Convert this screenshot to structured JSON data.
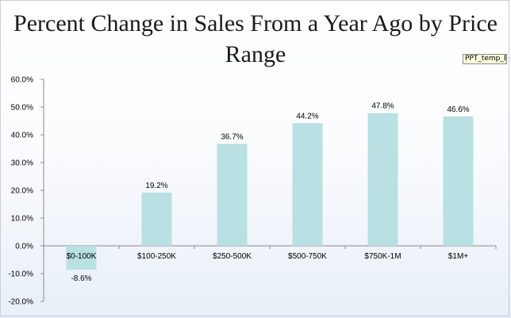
{
  "title": "Percent Change in Sales From a Year Ago by Price Range",
  "file_tag": "PPT_temp_B.jpg",
  "colors": {
    "bar": "#b9e0e2",
    "axis": "#8a8a8a"
  },
  "chart_data": {
    "type": "bar",
    "title": "Percent Change in Sales From a Year Ago by Price Range",
    "xlabel": "",
    "ylabel": "",
    "categories": [
      "$0-100K",
      "$100-250K",
      "$250-500K",
      "$500-750K",
      "$750K-1M",
      "$1M+"
    ],
    "values": [
      -8.6,
      19.2,
      36.7,
      44.2,
      47.8,
      46.6
    ],
    "value_labels": [
      "-8.6%",
      "19.2%",
      "36.7%",
      "44.2%",
      "47.8%",
      "46.6%"
    ],
    "ylim": [
      -20,
      60
    ],
    "yticks": [
      60,
      50,
      40,
      30,
      20,
      10,
      0,
      -10,
      -20
    ],
    "ytick_labels": [
      "60.0%",
      "50.0%",
      "40.0%",
      "30.0%",
      "20.0%",
      "10.0%",
      "0.0%",
      "-10.0%",
      "-20.0%"
    ],
    "grid": false,
    "legend": "none"
  }
}
